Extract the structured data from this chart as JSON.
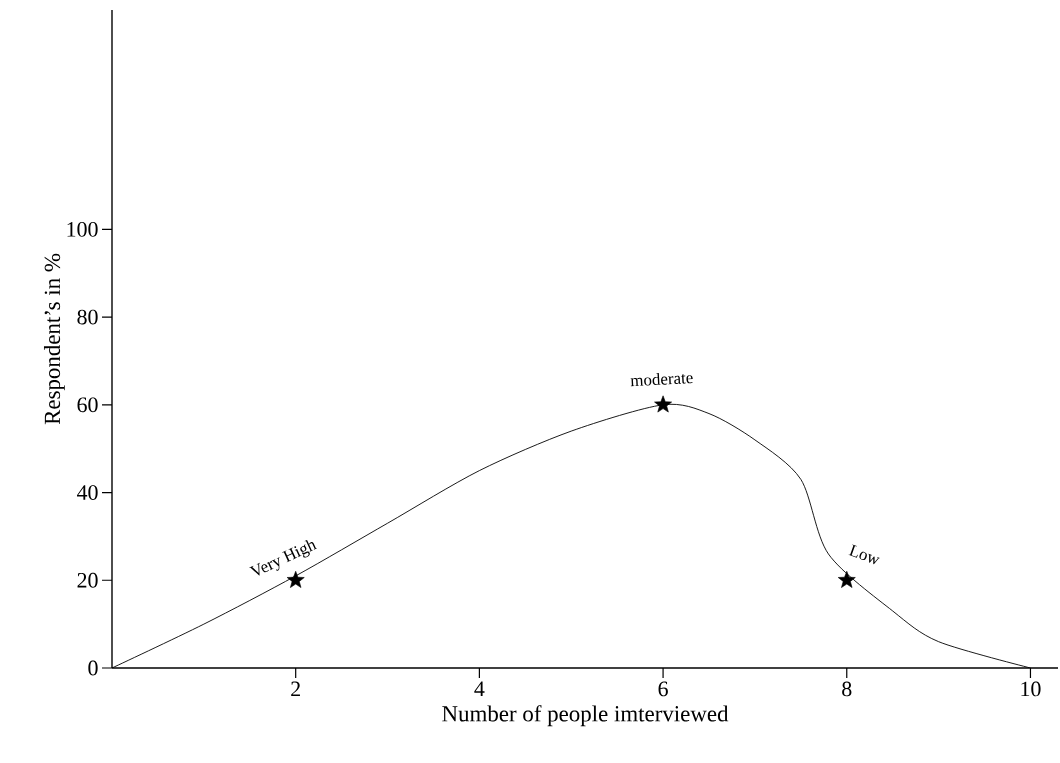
{
  "chart_data": {
    "type": "line",
    "xlabel": "Number of people imterviewed",
    "ylabel": "Respondent’s in %",
    "xlim": [
      0,
      10.3
    ],
    "ylim": [
      0,
      150
    ],
    "xticks": [
      2,
      4,
      6,
      8,
      10
    ],
    "yticks": [
      0,
      20,
      40,
      60,
      80,
      100
    ],
    "series": [
      {
        "color": "#000000",
        "marker": "none",
        "x": [
          0,
          1,
          2,
          3,
          4,
          5,
          6,
          6.5,
          7,
          7.5,
          7.8,
          8.5,
          9,
          10
        ],
        "values": [
          0,
          10,
          21,
          33,
          45,
          54,
          60,
          58,
          52,
          43,
          26,
          13,
          6,
          0
        ]
      },
      {
        "type": "scatter",
        "color": "#000000",
        "marker": "star",
        "x": [
          2,
          6,
          8
        ],
        "values": [
          20,
          60,
          20
        ]
      }
    ],
    "annotations": [
      {
        "text": "Very High",
        "x": 2,
        "y": 20
      },
      {
        "text": "moderate",
        "x": 6,
        "y": 60
      },
      {
        "text": "Low",
        "x": 8,
        "y": 20
      }
    ]
  }
}
